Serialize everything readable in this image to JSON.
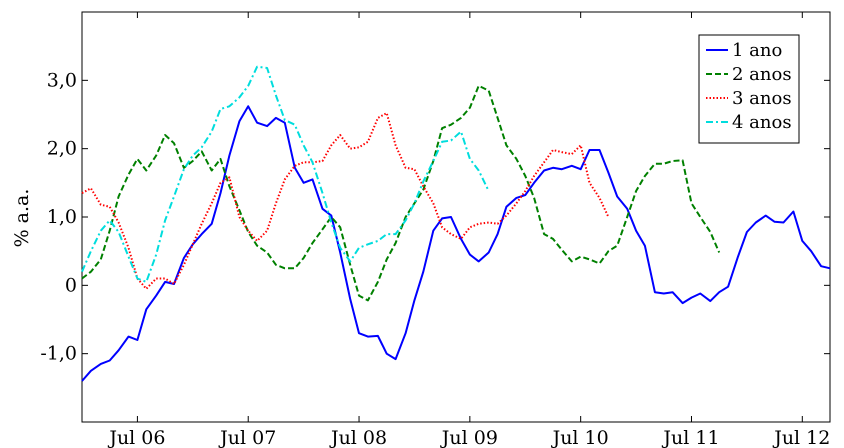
{
  "chart_data": {
    "type": "line",
    "title": "",
    "xlabel": "",
    "ylabel": "% a.a.",
    "xlim": [
      2005.5,
      2012.25
    ],
    "ylim": [
      -2.0,
      4.0
    ],
    "grid": false,
    "legend_position": "top-right",
    "x_ticks": [
      {
        "value": 2006.0,
        "label": "Jul 06"
      },
      {
        "value": 2007.0,
        "label": "Jul 07"
      },
      {
        "value": 2008.0,
        "label": "Jul 08"
      },
      {
        "value": 2009.0,
        "label": "Jul 09"
      },
      {
        "value": 2010.0,
        "label": "Jul 10"
      },
      {
        "value": 2011.0,
        "label": "Jul 11"
      },
      {
        "value": 2012.0,
        "label": "Jul 12"
      }
    ],
    "y_ticks": [
      {
        "value": -1.0,
        "label": "-1,0"
      },
      {
        "value": 0.0,
        "label": "0"
      },
      {
        "value": 1.0,
        "label": "1,0"
      },
      {
        "value": 2.0,
        "label": "2,0"
      },
      {
        "value": 3.0,
        "label": "3,0"
      }
    ],
    "series": [
      {
        "name": "1 ano",
        "color": "#0000ff",
        "dash": "solid",
        "x": [
          2005.5,
          2005.58,
          2005.67,
          2005.75,
          2005.83,
          2005.92,
          2006.0,
          2006.08,
          2006.17,
          2006.25,
          2006.33,
          2006.42,
          2006.5,
          2006.58,
          2006.67,
          2006.75,
          2006.83,
          2006.92,
          2007.0,
          2007.08,
          2007.17,
          2007.25,
          2007.33,
          2007.42,
          2007.5,
          2007.58,
          2007.67,
          2007.75,
          2007.83,
          2007.92,
          2008.0,
          2008.08,
          2008.17,
          2008.25,
          2008.33,
          2008.42,
          2008.5,
          2008.58,
          2008.67,
          2008.75,
          2008.83,
          2008.92,
          2009.0,
          2009.08,
          2009.17,
          2009.25,
          2009.33,
          2009.42,
          2009.5,
          2009.58,
          2009.67,
          2009.75,
          2009.83,
          2009.92,
          2010.0,
          2010.08,
          2010.17,
          2010.25,
          2010.33,
          2010.42,
          2010.5,
          2010.58,
          2010.67,
          2010.75,
          2010.83,
          2010.92,
          2011.0,
          2011.08,
          2011.17,
          2011.25,
          2011.33,
          2011.42,
          2011.5,
          2011.58,
          2011.67,
          2011.75,
          2011.83,
          2011.92,
          2012.0,
          2012.08,
          2012.17,
          2012.25
        ],
        "y": [
          -1.4,
          -1.25,
          -1.15,
          -1.1,
          -0.95,
          -0.75,
          -0.8,
          -0.35,
          -0.15,
          0.05,
          0.02,
          0.4,
          0.6,
          0.75,
          0.9,
          1.35,
          1.9,
          2.4,
          2.62,
          2.38,
          2.33,
          2.45,
          2.38,
          1.72,
          1.5,
          1.55,
          1.12,
          1.02,
          0.48,
          -0.2,
          -0.7,
          -0.75,
          -0.74,
          -1.0,
          -1.08,
          -0.7,
          -0.22,
          0.2,
          0.8,
          0.98,
          1.0,
          0.68,
          0.45,
          0.35,
          0.48,
          0.75,
          1.15,
          1.28,
          1.32,
          1.5,
          1.68,
          1.72,
          1.7,
          1.75,
          1.7,
          1.98,
          1.98,
          1.65,
          1.3,
          1.12,
          0.8,
          0.58,
          -0.1,
          -0.12,
          -0.1,
          -0.26,
          -0.18,
          -0.12,
          -0.23,
          -0.1,
          -0.02,
          0.42,
          0.78,
          0.92,
          1.02,
          0.93,
          0.92,
          1.08,
          0.65,
          0.5,
          0.28,
          0.25
        ]
      },
      {
        "name": "2 anos",
        "color": "#008000",
        "dash": "dashed",
        "x": [
          2005.5,
          2005.58,
          2005.67,
          2005.75,
          2005.83,
          2005.92,
          2006.0,
          2006.08,
          2006.17,
          2006.25,
          2006.33,
          2006.42,
          2006.5,
          2006.58,
          2006.67,
          2006.75,
          2006.83,
          2006.92,
          2007.0,
          2007.08,
          2007.17,
          2007.25,
          2007.33,
          2007.42,
          2007.5,
          2007.58,
          2007.67,
          2007.75,
          2007.83,
          2007.92,
          2008.0,
          2008.08,
          2008.17,
          2008.25,
          2008.33,
          2008.42,
          2008.5,
          2008.58,
          2008.67,
          2008.75,
          2008.83,
          2008.92,
          2009.0,
          2009.08,
          2009.17,
          2009.25,
          2009.33,
          2009.42,
          2009.5,
          2009.58,
          2009.67,
          2009.75,
          2009.83,
          2009.92,
          2010.0,
          2010.08,
          2010.17,
          2010.25,
          2010.33,
          2010.42,
          2010.5,
          2010.58,
          2010.67,
          2010.75,
          2010.83,
          2010.92,
          2011.0,
          2011.08,
          2011.17,
          2011.25
        ],
        "y": [
          0.1,
          0.2,
          0.38,
          0.8,
          1.3,
          1.62,
          1.85,
          1.68,
          1.9,
          2.2,
          2.08,
          1.72,
          1.82,
          1.96,
          1.68,
          1.85,
          1.45,
          1.1,
          0.78,
          0.58,
          0.48,
          0.3,
          0.25,
          0.25,
          0.4,
          0.62,
          0.82,
          1.0,
          0.85,
          0.3,
          -0.15,
          -0.22,
          0.05,
          0.38,
          0.62,
          1.0,
          1.2,
          1.4,
          1.82,
          2.3,
          2.35,
          2.45,
          2.6,
          2.92,
          2.85,
          2.45,
          2.05,
          1.85,
          1.6,
          1.28,
          0.75,
          0.68,
          0.52,
          0.35,
          0.42,
          0.38,
          0.32,
          0.5,
          0.58,
          1.0,
          1.38,
          1.6,
          1.78,
          1.78,
          1.82,
          1.83,
          1.2,
          1.0,
          0.78,
          0.48
        ]
      },
      {
        "name": "3 anos",
        "color": "#ff0000",
        "dash": "dotted",
        "x": [
          2005.5,
          2005.58,
          2005.67,
          2005.75,
          2005.83,
          2005.92,
          2006.0,
          2006.08,
          2006.17,
          2006.25,
          2006.33,
          2006.42,
          2006.5,
          2006.58,
          2006.67,
          2006.75,
          2006.83,
          2006.92,
          2007.0,
          2007.08,
          2007.17,
          2007.25,
          2007.33,
          2007.42,
          2007.5,
          2007.58,
          2007.67,
          2007.75,
          2007.83,
          2007.92,
          2008.0,
          2008.08,
          2008.17,
          2008.25,
          2008.33,
          2008.42,
          2008.5,
          2008.58,
          2008.67,
          2008.75,
          2008.83,
          2008.92,
          2009.0,
          2009.08,
          2009.17,
          2009.25,
          2009.33,
          2009.42,
          2009.5,
          2009.58,
          2009.67,
          2009.75,
          2009.83,
          2009.92,
          2010.0,
          2010.08,
          2010.17,
          2010.25
        ],
        "y": [
          1.35,
          1.42,
          1.18,
          1.15,
          0.92,
          0.55,
          0.1,
          -0.05,
          0.1,
          0.1,
          0.02,
          0.3,
          0.6,
          0.9,
          1.2,
          1.5,
          1.58,
          1.0,
          0.8,
          0.65,
          0.8,
          1.2,
          1.55,
          1.75,
          1.8,
          1.8,
          1.82,
          2.05,
          2.2,
          2.0,
          2.02,
          2.1,
          2.45,
          2.52,
          2.05,
          1.72,
          1.7,
          1.45,
          1.2,
          0.85,
          0.75,
          0.68,
          0.85,
          0.9,
          0.92,
          0.9,
          1.02,
          1.2,
          1.38,
          1.6,
          1.8,
          1.98,
          1.95,
          1.92,
          2.05,
          1.5,
          1.28,
          1.0
        ]
      },
      {
        "name": "4 anos",
        "color": "#00dddd",
        "dash": "dashdot",
        "x": [
          2005.5,
          2005.58,
          2005.67,
          2005.75,
          2005.83,
          2005.92,
          2006.0,
          2006.08,
          2006.17,
          2006.25,
          2006.33,
          2006.42,
          2006.5,
          2006.58,
          2006.67,
          2006.75,
          2006.83,
          2006.92,
          2007.0,
          2007.08,
          2007.17,
          2007.25,
          2007.33,
          2007.42,
          2007.5,
          2007.58,
          2007.67,
          2007.75,
          2007.83,
          2007.92,
          2008.0,
          2008.08,
          2008.17,
          2008.25,
          2008.33,
          2008.42,
          2008.5,
          2008.58,
          2008.67,
          2008.75,
          2008.83,
          2008.92,
          2009.0,
          2009.08,
          2009.17
        ],
        "y": [
          0.2,
          0.5,
          0.8,
          0.95,
          0.78,
          0.42,
          0.1,
          0.05,
          0.45,
          0.95,
          1.3,
          1.7,
          1.9,
          2.02,
          2.25,
          2.58,
          2.62,
          2.75,
          2.92,
          3.2,
          3.18,
          2.78,
          2.42,
          2.35,
          2.05,
          1.8,
          1.35,
          0.92,
          0.55,
          0.35,
          0.55,
          0.6,
          0.65,
          0.75,
          0.75,
          0.95,
          1.2,
          1.52,
          1.82,
          2.1,
          2.12,
          2.25,
          1.85,
          1.68,
          1.38
        ]
      }
    ]
  }
}
